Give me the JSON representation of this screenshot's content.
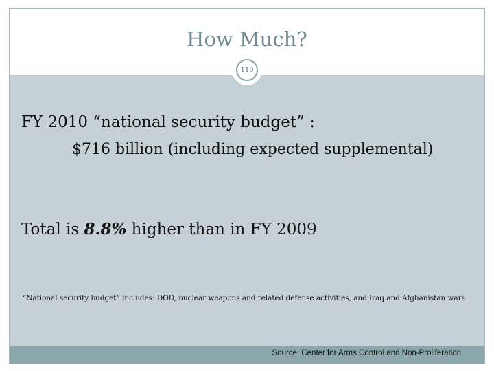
{
  "slide": {
    "title": "How Much?",
    "slide_number": "110",
    "budget_line": "FY 2010 “national security budget” :",
    "amount_line": "$716 billion  (including expected supplemental)",
    "total_prefix": "Total is ",
    "total_percent": "8.8%",
    "total_suffix": " higher than in FY 2009",
    "definition_note": "“National security budget” includes: DOD, nuclear weapons and related defense activities, and Iraq and Afghanistan wars",
    "source": "Source: Center for Arms Control and Non-Proliferation"
  },
  "colors": {
    "title": "#6f8a91",
    "content_band": "#c6d0d7",
    "footer_band": "#8aa7ab",
    "frame_border": "#aab8bd"
  }
}
